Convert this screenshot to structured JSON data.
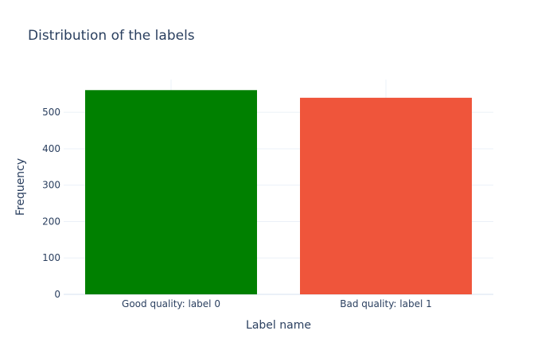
{
  "chart_data": {
    "type": "bar",
    "title": "Distribution of the labels",
    "xlabel": "Label name",
    "ylabel": "Frequency",
    "categories": [
      "Good quality: label 0",
      "Bad quality: label 1"
    ],
    "values": [
      561,
      540
    ],
    "colors": [
      "#008000",
      "#ef553b"
    ],
    "ylim": [
      0,
      590
    ],
    "yticks": [
      0,
      100,
      200,
      300,
      400,
      500
    ],
    "grid": true,
    "legend": "none"
  }
}
